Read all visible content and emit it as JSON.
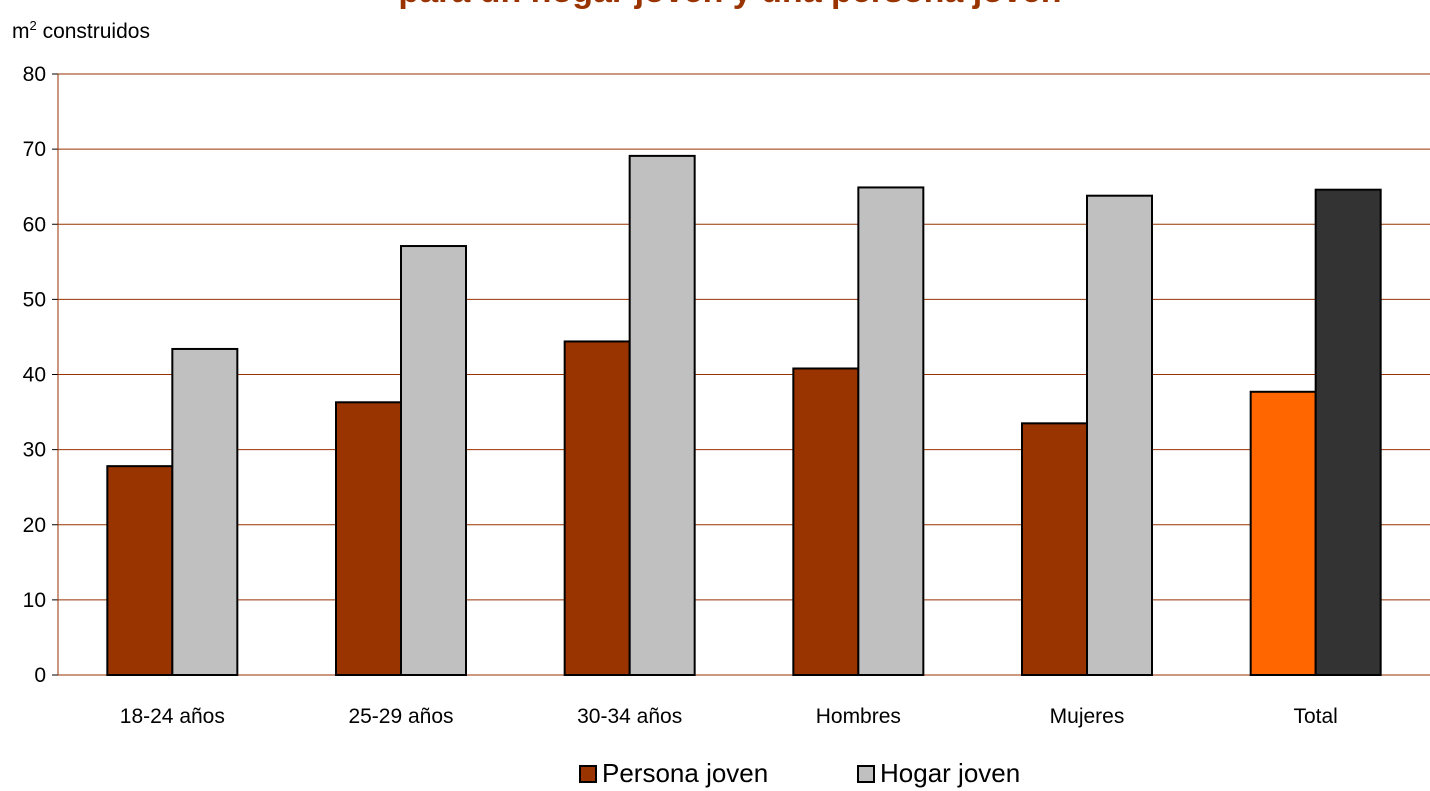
{
  "chart_data": {
    "type": "bar",
    "title": "para un hogar joven y una persona joven",
    "ylabel_base": "m",
    "ylabel_sup": "2",
    "ylabel_rest": " construidos",
    "ylim": [
      0,
      80
    ],
    "yticks": [
      0,
      10,
      20,
      30,
      40,
      50,
      60,
      70,
      80
    ],
    "grid": true,
    "legend_position": "bottom-center",
    "categories": [
      "18-24 años",
      "25-29 años",
      "30-34 años",
      "Hombres",
      "Mujeres",
      "Total"
    ],
    "series": [
      {
        "name": "Persona joven",
        "color": "#993300",
        "total_color": "#ff6600",
        "values": [
          27.8,
          36.3,
          44.4,
          40.8,
          33.5,
          37.7
        ]
      },
      {
        "name": "Hogar joven",
        "color": "#c0c0c0",
        "total_color": "#333333",
        "values": [
          43.4,
          57.1,
          69.1,
          64.9,
          63.8,
          64.6
        ]
      }
    ],
    "gridline_color": "#993300"
  }
}
